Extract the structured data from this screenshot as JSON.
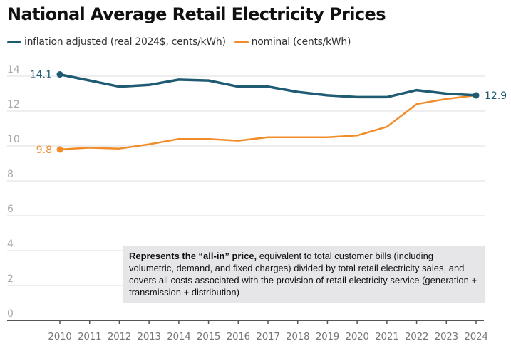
{
  "chart_data": {
    "type": "line",
    "title": "National Average Retail Electricity Prices",
    "xlabel": "",
    "ylabel": "",
    "x": [
      2010,
      2011,
      2012,
      2013,
      2014,
      2015,
      2016,
      2017,
      2018,
      2019,
      2020,
      2021,
      2022,
      2023,
      2024
    ],
    "x_tick_labels": [
      "2010",
      "2011",
      "2012",
      "2013",
      "2014",
      "2015",
      "2016",
      "2017",
      "2018",
      "2019",
      "2020",
      "2021",
      "2022",
      "2023",
      "2024"
    ],
    "ylim": [
      0,
      14
    ],
    "y_ticks": [
      0,
      2,
      4,
      6,
      8,
      10,
      12,
      14
    ],
    "grid": true,
    "legend_position": "top-left",
    "series": [
      {
        "name": "inflation adjusted (real 2024$, cents/kWh)",
        "color": "#1f5b73",
        "values": [
          14.1,
          13.75,
          13.4,
          13.5,
          13.8,
          13.75,
          13.4,
          13.4,
          13.1,
          12.9,
          12.8,
          12.8,
          13.2,
          13.0,
          12.9
        ],
        "start_label": "14.1",
        "end_label": "12.9"
      },
      {
        "name": "nominal (cents/kWh)",
        "color": "#f28c28",
        "values": [
          9.8,
          9.9,
          9.85,
          10.1,
          10.4,
          10.4,
          10.3,
          10.5,
          10.5,
          10.5,
          10.6,
          11.1,
          12.4,
          12.7,
          12.9
        ],
        "start_label": "9.8",
        "end_label": ""
      }
    ],
    "annotation": {
      "bold": "Represents the “all-in” price,",
      "text": " equivalent to total customer bills (including volumetric, demand, and fixed charges) divided by total retail electricity sales, and covers all costs associated with the provision of retail electricity service (generation + transmission + distribution)"
    }
  },
  "colors": {
    "tick_label": "#a8a8a8",
    "x_tick_label": "#757575",
    "gridline": "#e8e8e8",
    "axis": "#555555",
    "annotation_bg": "#e6e6e9"
  }
}
